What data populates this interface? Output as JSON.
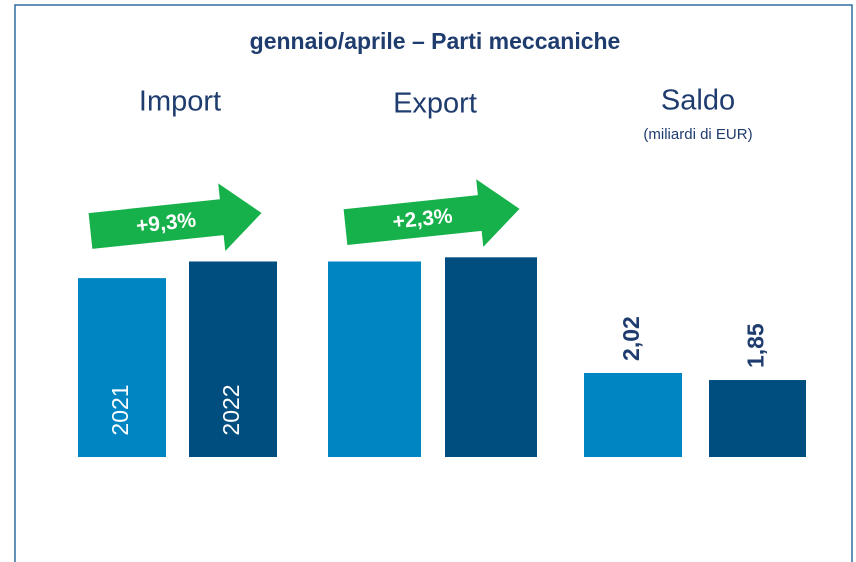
{
  "chart_data": {
    "type": "bar",
    "title": "gennaio/aprile – Parti meccaniche",
    "categories": [
      "Import",
      "Export",
      "Saldo"
    ],
    "subtitle": "(miliardi di EUR)",
    "changes": [
      "+9,3%",
      "+2,3%",
      null
    ],
    "series": [
      {
        "name": "2021",
        "color": "#0085c3",
        "values": [
          4.3,
          4.7,
          2.02
        ],
        "value_labels": [
          null,
          null,
          "2,02"
        ]
      },
      {
        "name": "2022",
        "color": "#004d7f",
        "values": [
          4.7,
          4.8,
          1.85
        ],
        "value_labels": [
          null,
          null,
          "1,85"
        ]
      }
    ]
  }
}
